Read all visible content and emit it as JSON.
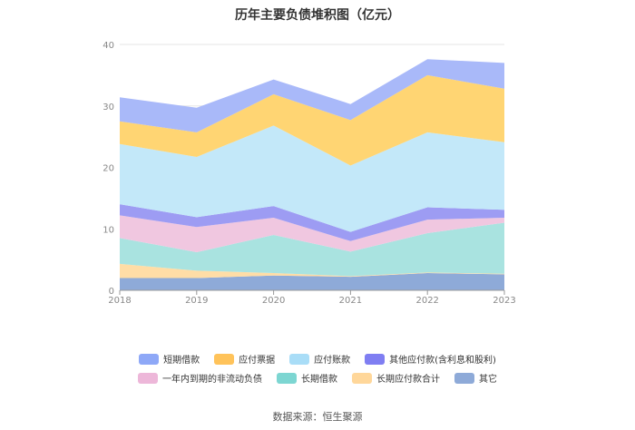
{
  "chart_data": {
    "type": "area",
    "title": "历年主要负债堆积图（亿元）",
    "x": [
      "2018",
      "2019",
      "2020",
      "2021",
      "2022",
      "2023"
    ],
    "ylim": [
      0,
      40
    ],
    "yticks": [
      0,
      10,
      20,
      30,
      40
    ],
    "grid": true,
    "legend_position": "bottom",
    "series": [
      {
        "name": "其它",
        "color": "#8EAAD8",
        "values": [
          2.0,
          2.0,
          2.4,
          2.2,
          2.8,
          2.6
        ]
      },
      {
        "name": "长期应付款合计",
        "color": "#FFDDA6",
        "values": [
          2.3,
          1.2,
          0.4,
          0.1,
          0.1,
          0.1
        ]
      },
      {
        "name": "长期借款",
        "color": "#A9E3E0",
        "values": [
          4.2,
          3.0,
          6.2,
          4.0,
          6.4,
          8.3
        ]
      },
      {
        "name": "一年内到期的非流动负债",
        "color": "#F0C7E0",
        "values": [
          3.7,
          4.1,
          2.8,
          1.7,
          2.2,
          0.8
        ]
      },
      {
        "name": "其他应付款(含利息和股利)",
        "color": "#9D9CF3",
        "values": [
          1.8,
          1.6,
          1.9,
          1.5,
          2.0,
          1.3
        ]
      },
      {
        "name": "应付账款",
        "color": "#C3E8F9",
        "values": [
          9.8,
          9.8,
          13.1,
          10.8,
          12.2,
          11.0
        ]
      },
      {
        "name": "应付票据",
        "color": "#FFD573",
        "values": [
          3.7,
          4.0,
          5.1,
          7.4,
          9.3,
          8.7
        ]
      },
      {
        "name": "短期借款",
        "color": "#A9B9F9",
        "values": [
          3.9,
          4.0,
          2.4,
          2.6,
          2.6,
          4.2
        ]
      }
    ]
  },
  "legend": {
    "row1": [
      {
        "label": "短期借款",
        "color": "#8EA8F7"
      },
      {
        "label": "应付票据",
        "color": "#FFC35A"
      },
      {
        "label": "应付账款",
        "color": "#A9DDF7"
      },
      {
        "label": "其他应付款(含利息和股利)",
        "color": "#7F7EF2"
      }
    ],
    "row2": [
      {
        "label": "一年内到期的非流动负债",
        "color": "#EDB7D9"
      },
      {
        "label": "长期借款",
        "color": "#7DD6D2"
      },
      {
        "label": "长期应付款合计",
        "color": "#FFD79A"
      },
      {
        "label": "其它",
        "color": "#8EAAD8"
      }
    ]
  },
  "source": "数据来源：恒生聚源"
}
